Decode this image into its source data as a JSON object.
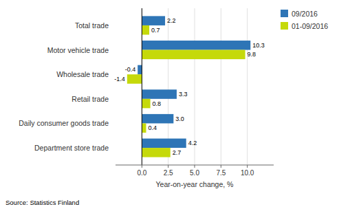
{
  "chart_data": {
    "type": "bar",
    "orientation": "horizontal",
    "categories": [
      "Department store trade",
      "Daily consumer goods trade",
      "Retail trade",
      "Wholesale trade",
      "Motor vehicle trade",
      "Total trade"
    ],
    "series": [
      {
        "name": "09/2016",
        "color": "#2E75B6",
        "values": [
          4.2,
          3.0,
          3.3,
          -0.4,
          10.3,
          2.2
        ],
        "value_labels": [
          "4.2",
          "3.0",
          "3.3",
          "-0.4",
          "10.3",
          "2.2"
        ]
      },
      {
        "name": "01-09/2016",
        "color": "#C5D90A",
        "values": [
          2.7,
          0.4,
          0.8,
          -1.4,
          9.8,
          0.7
        ],
        "value_labels": [
          "2.7",
          "0.4",
          "0.8",
          "-1.4",
          "9.8",
          "0.7"
        ]
      }
    ],
    "x_label": "Year-on-year change, %",
    "xlim": [
      -2.5,
      12.5
    ],
    "xticks": [
      {
        "value": 0.0,
        "label": "0.0"
      },
      2.5,
      {
        "value": 5.0,
        "label": "5.0"
      },
      7.5,
      {
        "value": 10.0,
        "label": "10.0"
      }
    ],
    "grid": true,
    "legend": "upper right",
    "data_labels": true,
    "annotations": [
      "Source: Statistics Finland"
    ]
  }
}
